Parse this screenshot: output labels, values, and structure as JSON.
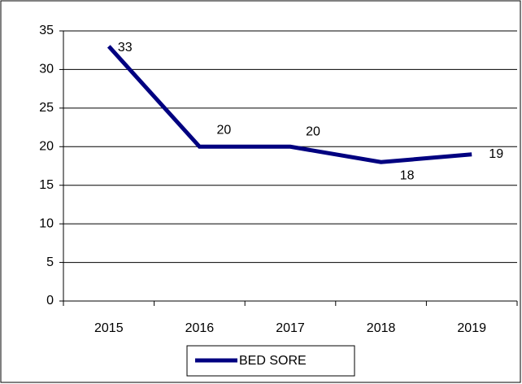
{
  "chart_data": {
    "type": "line",
    "categories": [
      "2015",
      "2016",
      "2017",
      "2018",
      "2019"
    ],
    "series": [
      {
        "name": "BED SORE",
        "color": "#000080",
        "values": [
          33,
          20,
          20,
          18,
          19
        ]
      }
    ],
    "ylim": [
      0,
      35
    ],
    "yticks": [
      0,
      5,
      10,
      15,
      20,
      25,
      30,
      35
    ],
    "grid": true,
    "legend": "bottom"
  }
}
